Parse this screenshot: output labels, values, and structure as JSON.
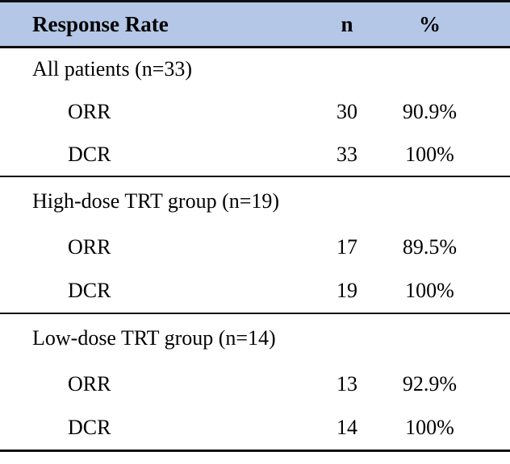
{
  "table": {
    "header": {
      "label": "Response Rate",
      "n": "n",
      "pct": "%"
    },
    "sections": [
      {
        "label": "All patients (n=33)",
        "rows": [
          {
            "metric": "ORR",
            "n": "30",
            "pct": "90.9%"
          },
          {
            "metric": "DCR",
            "n": "33",
            "pct": "100%"
          }
        ]
      },
      {
        "label": "High-dose TRT group (n=19)",
        "rows": [
          {
            "metric": "ORR",
            "n": "17",
            "pct": "89.5%"
          },
          {
            "metric": "DCR",
            "n": "19",
            "pct": "100%"
          }
        ]
      },
      {
        "label": "Low-dose TRT group (n=14)",
        "rows": [
          {
            "metric": "ORR",
            "n": "13",
            "pct": "92.9%"
          },
          {
            "metric": "DCR",
            "n": "14",
            "pct": "100%"
          }
        ]
      }
    ],
    "colors": {
      "header_bg": "#b4c7e7",
      "border": "#0d0d0d",
      "text": "#000000"
    }
  },
  "chart_data": {
    "type": "table",
    "title": "Response Rate",
    "columns": [
      "Response Rate",
      "n",
      "%"
    ],
    "groups": [
      {
        "group": "All patients (n=33)",
        "rows": [
          {
            "metric": "ORR",
            "n": 30,
            "percent": "90.9%"
          },
          {
            "metric": "DCR",
            "n": 33,
            "percent": "100%"
          }
        ]
      },
      {
        "group": "High-dose TRT group (n=19)",
        "rows": [
          {
            "metric": "ORR",
            "n": 17,
            "percent": "89.5%"
          },
          {
            "metric": "DCR",
            "n": 19,
            "percent": "100%"
          }
        ]
      },
      {
        "group": "Low-dose TRT group (n=14)",
        "rows": [
          {
            "metric": "ORR",
            "n": 13,
            "percent": "92.9%"
          },
          {
            "metric": "DCR",
            "n": 14,
            "percent": "100%"
          }
        ]
      }
    ]
  }
}
